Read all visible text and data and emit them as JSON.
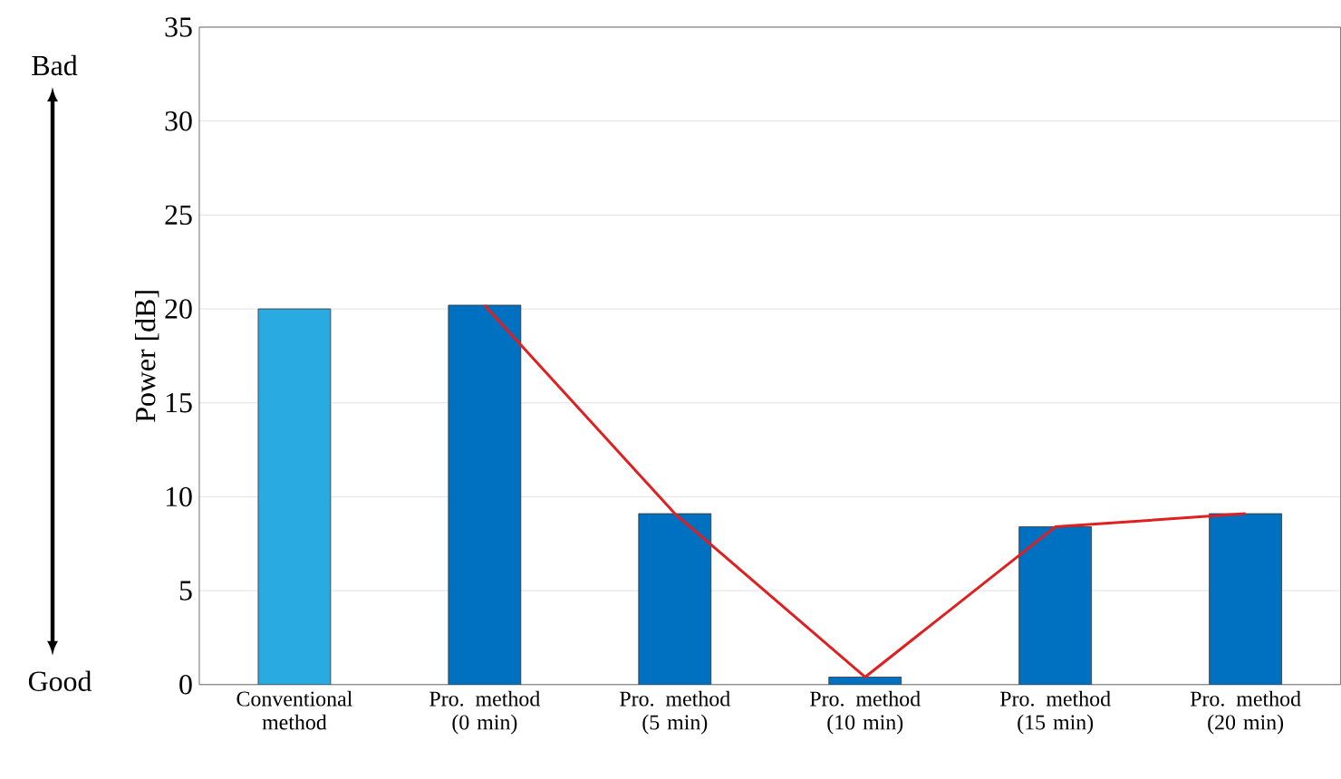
{
  "chart_data": {
    "type": "bar",
    "ylabel": "Power [dB]",
    "categories": [
      "Conventional method",
      "Pro. method (0 min)",
      "Pro. method (5 min)",
      "Pro. method (10 min)",
      "Pro. method (15 min)",
      "Pro. method (20 min)"
    ],
    "series": [
      {
        "colors": [
          "#29abe2",
          "#0070c0",
          "#0070c0",
          "#0070c0",
          "#0070c0",
          "#0070c0"
        ],
        "values": [
          20,
          20.2,
          9.1,
          0.4,
          8.4,
          9.1
        ]
      },
      {
        "type": "line",
        "color": "#e02020",
        "values": [
          null,
          20.2,
          9.1,
          0.4,
          8.4,
          9.1
        ]
      }
    ],
    "ylim": [
      0,
      35
    ],
    "yticks": [
      0,
      5,
      10,
      15,
      20,
      25,
      30,
      35
    ],
    "grid": "y",
    "annotations": [
      "Bad",
      "Good"
    ]
  }
}
